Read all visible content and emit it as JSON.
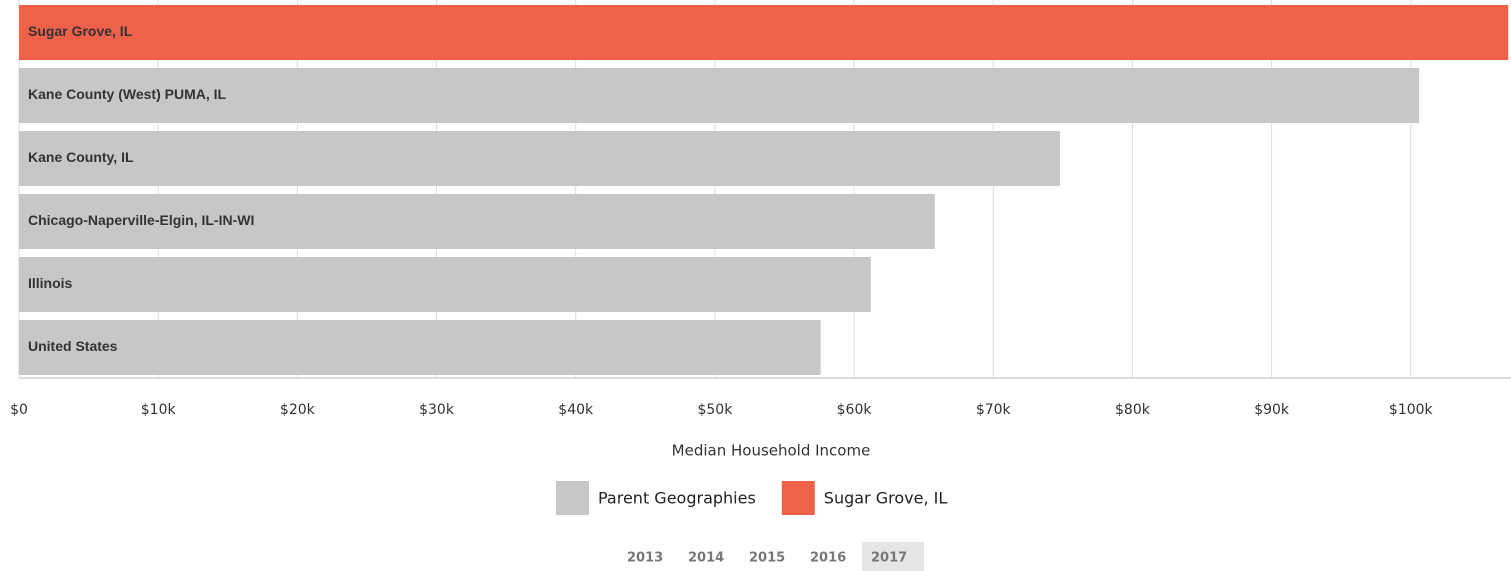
{
  "chart_data": {
    "type": "hbar",
    "categories": [
      "Sugar Grove, IL",
      "Kane County (West) PUMA, IL",
      "Kane County, IL",
      "Chicago-Naperville-Elgin, IL-IN-WI",
      "Illinois",
      "United States"
    ],
    "values": [
      107000,
      100600,
      74800,
      65800,
      61200,
      57600
    ],
    "colors": [
      "#f0614a",
      "#c6c7c9",
      "#c6c7c9",
      "#c6c7c9",
      "#c6c7c9",
      "#c6c7c9"
    ],
    "xlim": [
      0,
      107200
    ],
    "xticks": [
      {
        "value": 0,
        "label": "$0"
      },
      {
        "value": 10000,
        "label": "$10k"
      },
      {
        "value": 20000,
        "label": "$20k"
      },
      {
        "value": 30000,
        "label": "$30k"
      },
      {
        "value": 40000,
        "label": "$40k"
      },
      {
        "value": 50000,
        "label": "$50k"
      },
      {
        "value": 60000,
        "label": "$60k"
      },
      {
        "value": 70000,
        "label": "$70k"
      },
      {
        "value": 80000,
        "label": "$80k"
      },
      {
        "value": 90000,
        "label": "$90k"
      },
      {
        "value": 100000,
        "label": "$100k"
      }
    ],
    "xlabel": "Median Household Income",
    "grid": true,
    "legend": [
      {
        "name": "Parent Geographies",
        "color": "#c6c7c9"
      },
      {
        "name": "Sugar Grove, IL",
        "color": "#f0614a"
      }
    ],
    "years": [
      "2013",
      "2014",
      "2015",
      "2016",
      "2017"
    ],
    "selected_year": "2017"
  }
}
